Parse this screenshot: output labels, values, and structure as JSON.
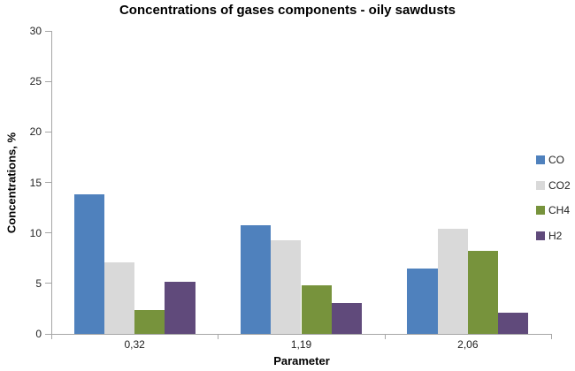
{
  "chart_data": {
    "type": "bar",
    "title": "Concentrations of gases components - oily sawdusts",
    "xlabel": "Parameter",
    "ylabel": "Concentrations, %",
    "categories": [
      "0,32",
      "1,19",
      "2,06"
    ],
    "series": [
      {
        "name": "CO",
        "color": "#4F81BD",
        "values": [
          13.8,
          10.8,
          6.5
        ]
      },
      {
        "name": "CO2",
        "color": "#D9D9D9",
        "values": [
          7.1,
          9.3,
          10.4
        ]
      },
      {
        "name": "CH4",
        "color": "#77933C",
        "values": [
          2.4,
          4.8,
          8.2
        ]
      },
      {
        "name": "H2",
        "color": "#604A7B",
        "values": [
          5.2,
          3.1,
          2.1
        ]
      }
    ],
    "ylim": [
      0,
      30
    ],
    "ytick_step": 5,
    "grid": false,
    "legend_position": "right",
    "bar_gap_ratio": 1.5
  }
}
